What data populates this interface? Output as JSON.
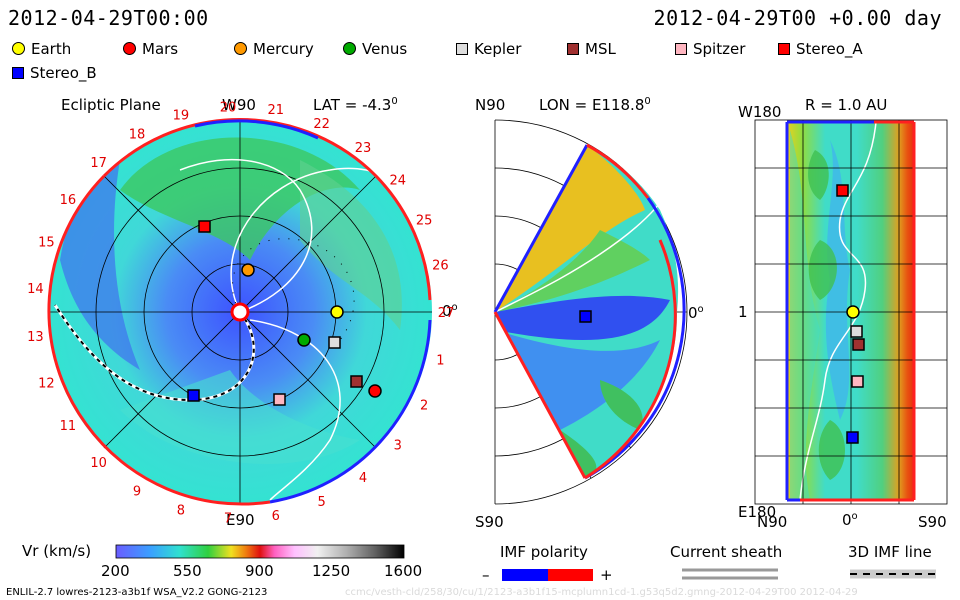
{
  "header": {
    "date_left": "2012-04-29T00:00",
    "date_right": "2012-04-29T00 +0.00 day"
  },
  "legend": [
    {
      "label": "Earth",
      "shape": "circle",
      "color": "#ffff00"
    },
    {
      "label": "Mars",
      "shape": "circle",
      "color": "#ff0000"
    },
    {
      "label": "Mercury",
      "shape": "circle",
      "color": "#ff9900"
    },
    {
      "label": "Venus",
      "shape": "circle",
      "color": "#00aa00"
    },
    {
      "label": "Kepler",
      "shape": "square",
      "color": "#dddddd"
    },
    {
      "label": "MSL",
      "shape": "square",
      "color": "#a03030"
    },
    {
      "label": "Spitzer",
      "shape": "square",
      "color": "#ffb6c1"
    },
    {
      "label": "Stereo_A",
      "shape": "square",
      "color": "#ff0000"
    },
    {
      "label": "Stereo_B",
      "shape": "square",
      "color": "#0000ff"
    }
  ],
  "ecliptic": {
    "title": "Ecliptic Plane",
    "lat": "LAT = -4.3",
    "deg": "0",
    "top_label": "W90",
    "bottom_label": "E90",
    "right_label": "0",
    "rotations": [
      "27",
      "1",
      "2",
      "3",
      "4",
      "5",
      "6",
      "7",
      "8",
      "9",
      "10",
      "11",
      "12",
      "13",
      "14",
      "15",
      "16",
      "17",
      "18",
      "19",
      "20",
      "21",
      "22",
      "23",
      "24",
      "25",
      "26"
    ]
  },
  "meridional": {
    "lon": "LON = E118.8",
    "deg": "0",
    "top_label": "N90",
    "bottom_label": "S90",
    "right_label": "0"
  },
  "latlon": {
    "title": "R = 1.0 AU",
    "top_left": "W180",
    "mid_left": "1",
    "bottom_left": "E180",
    "bottom_n": "N90",
    "bottom_zero": "0",
    "bottom_s": "S90"
  },
  "colorbar": {
    "label": "Vr (km/s)",
    "ticks": [
      "200",
      "550",
      "900",
      "1250",
      "1600"
    ]
  },
  "imf": {
    "title": "IMF polarity",
    "minus": "–",
    "plus": "+",
    "sheath_title": "Current sheath",
    "imf3d_title": "3D IMF line"
  },
  "footer": {
    "left": "ENLIL-2.7 lowres-2123-a3b1f WSA_V2.2 GONG-2123",
    "right": "ccmc/vesth-cld/258/30/cu/1/2123-a3b1f15-mcplumn1cd-1.g53q5d2.gmng-2012-04-29T00 2012-04-29"
  }
}
